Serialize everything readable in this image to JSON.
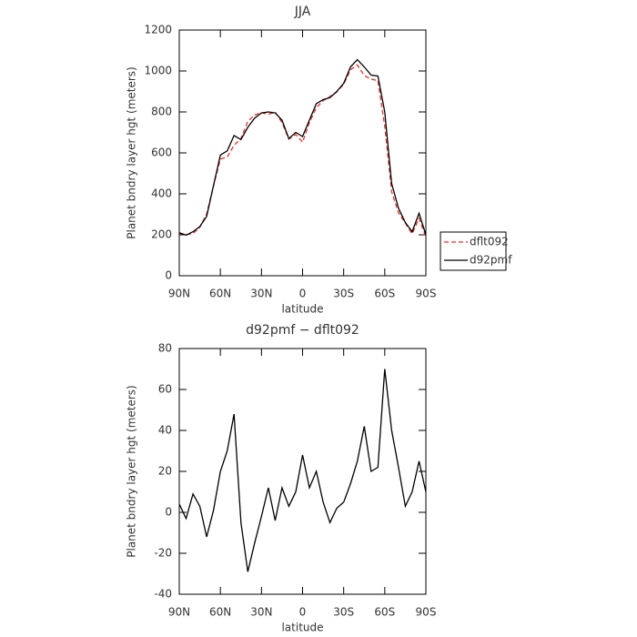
{
  "chart_data": [
    {
      "type": "line",
      "title": "JJA",
      "xlabel": "latitude",
      "ylabel": "Planet bndry layer hgt (meters)",
      "x": [
        90,
        85,
        80,
        75,
        70,
        65,
        60,
        55,
        50,
        45,
        40,
        35,
        30,
        25,
        20,
        15,
        10,
        5,
        0,
        -5,
        -10,
        -15,
        -20,
        -25,
        -30,
        -35,
        -40,
        -45,
        -50,
        -55,
        -60,
        -65,
        -70,
        -75,
        -80,
        -85,
        -90
      ],
      "series": [
        {
          "name": "dflt092",
          "color": "#e0302a",
          "style": "dashed",
          "values": [
            206,
            201,
            206,
            237,
            302,
            439,
            570,
            580,
            637,
            670,
            754,
            785,
            797,
            788,
            799,
            748,
            667,
            690,
            652,
            748,
            820,
            855,
            875,
            898,
            935,
            1006,
            1030,
            978,
            960,
            953,
            730,
            410,
            308,
            257,
            205,
            280,
            190
          ]
        },
        {
          "name": "d92pmf",
          "color": "#000000",
          "style": "solid",
          "values": [
            210,
            198,
            215,
            240,
            290,
            440,
            590,
            610,
            685,
            665,
            725,
            770,
            795,
            800,
            795,
            760,
            670,
            700,
            680,
            760,
            840,
            860,
            870,
            900,
            940,
            1020,
            1055,
            1020,
            980,
            975,
            800,
            450,
            330,
            260,
            215,
            305,
            200
          ]
        }
      ],
      "xlim": [
        90,
        -90
      ],
      "xticks": [
        {
          "value": 90,
          "label": "90N"
        },
        {
          "value": 60,
          "label": "60N"
        },
        {
          "value": 30,
          "label": "30N"
        },
        0,
        {
          "value": -30,
          "label": "30S"
        },
        {
          "value": -60,
          "label": "60S"
        },
        {
          "value": -90,
          "label": "90S"
        }
      ],
      "ylim": [
        0,
        1200
      ],
      "yticks": [
        0,
        200,
        400,
        600,
        800,
        1000,
        1200
      ],
      "legend": "right"
    },
    {
      "type": "line",
      "title": "d92pmf − dflt092",
      "xlabel": "latitude",
      "ylabel": "Planet bndry layer hgt (meters)",
      "x": [
        90,
        85,
        80,
        75,
        70,
        65,
        60,
        55,
        50,
        45,
        40,
        35,
        30,
        25,
        20,
        15,
        10,
        5,
        0,
        -5,
        -10,
        -15,
        -20,
        -25,
        -30,
        -35,
        -40,
        -45,
        -50,
        -55,
        -60,
        -65,
        -70,
        -75,
        -80,
        -85,
        -90
      ],
      "series": [
        {
          "color": "#000000",
          "style": "solid",
          "values": [
            4,
            -3,
            9,
            3,
            -12,
            1,
            20,
            30,
            48,
            -5,
            -29,
            -15,
            -2,
            12,
            -4,
            12,
            3,
            10,
            28,
            12,
            20,
            5,
            -5,
            2,
            5,
            14,
            25,
            42,
            20,
            22,
            70,
            40,
            22,
            3,
            10,
            25,
            10
          ]
        }
      ],
      "xlim": [
        90,
        -90
      ],
      "xticks": [
        {
          "value": 90,
          "label": "90N"
        },
        {
          "value": 60,
          "label": "60N"
        },
        {
          "value": 30,
          "label": "30N"
        },
        0,
        {
          "value": -30,
          "label": "30S"
        },
        {
          "value": -60,
          "label": "60S"
        },
        {
          "value": -90,
          "label": "90S"
        }
      ],
      "ylim": [
        -40,
        80
      ],
      "yticks": [
        -40,
        -20,
        0,
        20,
        40,
        60,
        80
      ]
    }
  ]
}
